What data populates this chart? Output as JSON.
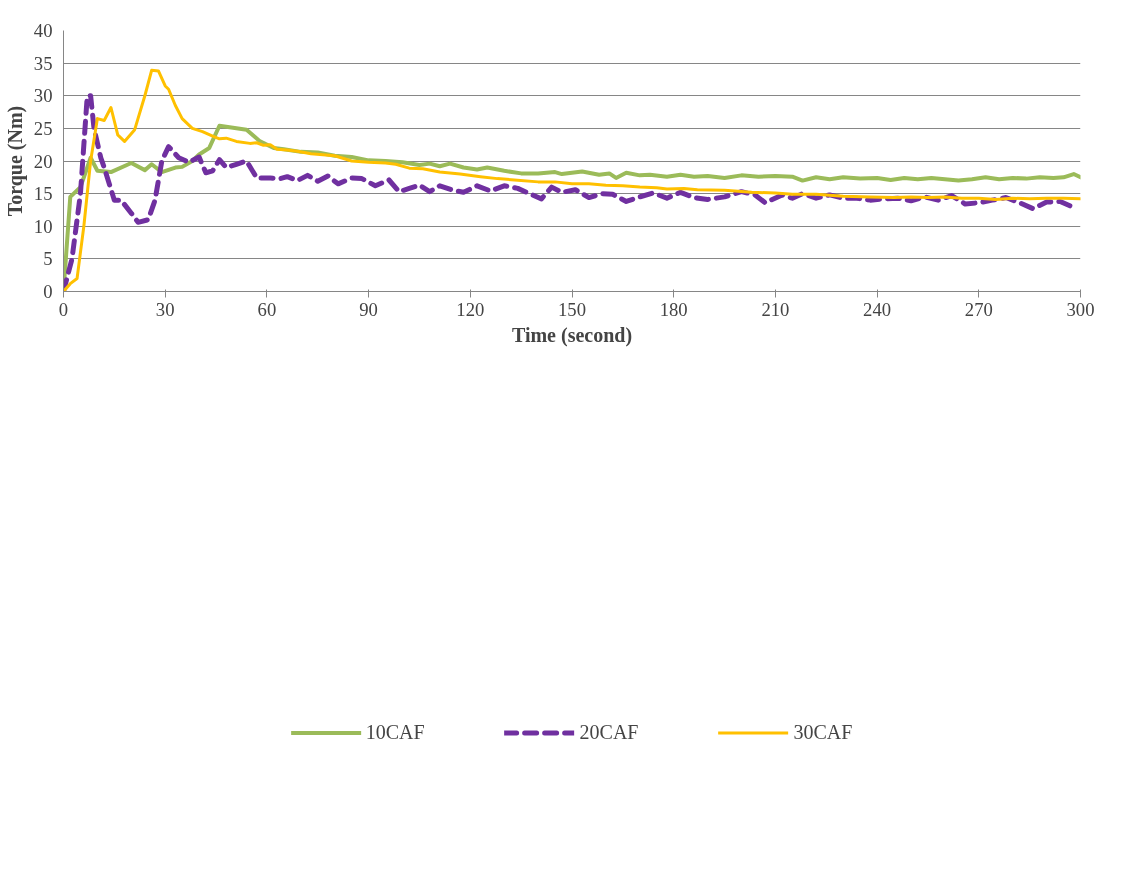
{
  "chart_data": {
    "type": "line",
    "xlabel": "Time (second)",
    "ylabel": "Torque (Nm)",
    "xlim": [
      0,
      300
    ],
    "xticks": [
      0,
      30,
      60,
      90,
      120,
      150,
      180,
      210,
      240,
      270,
      300
    ],
    "ylim": [
      0,
      40
    ],
    "yticks": [
      0,
      5,
      10,
      15,
      20,
      25,
      30,
      35,
      40
    ],
    "grid": "y",
    "legend": "bottom",
    "marker": "none",
    "series": [
      {
        "name": "10CAF",
        "color": "#9bbb59",
        "line_style": "solid",
        "x": [
          0,
          2,
          5,
          8,
          10,
          14,
          20,
          24,
          26,
          29,
          33,
          35,
          38,
          40,
          43,
          46,
          50,
          54,
          58,
          62,
          65,
          70,
          75,
          80,
          85,
          90,
          95,
          100,
          105,
          108,
          111,
          114,
          118,
          122,
          125,
          130,
          135,
          140,
          145,
          147,
          150,
          153,
          158,
          161,
          163,
          166,
          170,
          173,
          178,
          182,
          186,
          190,
          195,
          200,
          205,
          210,
          215,
          218,
          222,
          226,
          230,
          235,
          240,
          244,
          248,
          252,
          256,
          260,
          264,
          268,
          272,
          276,
          280,
          284,
          288,
          292,
          295,
          298,
          300
        ],
        "values": [
          0,
          14.5,
          16,
          20.5,
          18.5,
          18.3,
          19.7,
          18.6,
          19.5,
          18.3,
          19,
          19.1,
          20,
          21,
          22,
          25.4,
          25.1,
          24.8,
          23,
          22,
          21.8,
          21.4,
          21.3,
          20.8,
          20.6,
          20.1,
          20,
          19.8,
          19.4,
          19.6,
          19.2,
          19.6,
          19,
          18.7,
          19,
          18.5,
          18.1,
          18.1,
          18.3,
          18,
          18.2,
          18.4,
          17.9,
          18.1,
          17.4,
          18.2,
          17.8,
          17.9,
          17.6,
          17.9,
          17.6,
          17.7,
          17.4,
          17.8,
          17.6,
          17.7,
          17.6,
          17,
          17.5,
          17.2,
          17.5,
          17.3,
          17.4,
          17.1,
          17.4,
          17.2,
          17.4,
          17.2,
          17,
          17.2,
          17.5,
          17.2,
          17.4,
          17.3,
          17.5,
          17.4,
          17.5,
          18,
          17.5
        ]
      },
      {
        "name": "20CAF",
        "color": "#7030a0",
        "line_style": "dashed",
        "x": [
          0,
          2.5,
          5,
          7,
          8,
          9,
          11,
          12,
          15,
          17,
          20,
          22,
          25,
          27,
          29,
          31,
          34,
          37,
          40,
          42,
          44,
          46,
          48,
          51,
          54,
          57,
          61,
          64,
          66,
          69,
          72,
          75,
          78,
          81,
          85,
          88,
          92,
          96,
          99,
          102,
          105,
          108,
          111,
          115,
          118,
          122,
          126,
          130,
          134,
          137,
          141,
          144,
          147,
          151,
          155,
          159,
          162,
          166,
          170,
          174,
          178,
          182,
          186,
          190,
          195,
          200,
          204,
          207,
          212,
          215,
          218,
          222,
          226,
          230,
          234,
          238,
          242,
          246,
          250,
          254,
          258,
          262,
          266,
          270,
          274,
          278,
          282,
          286,
          290,
          294,
          297,
          299
        ],
        "values": [
          0,
          5,
          15,
          29.9,
          30,
          25,
          20.5,
          19,
          14,
          14,
          12,
          10.6,
          11,
          14,
          20,
          22.2,
          20.5,
          19.8,
          20.6,
          18.2,
          18.5,
          20.2,
          19,
          19.5,
          20,
          17.4,
          17.4,
          17.3,
          17.6,
          17,
          17.8,
          16.9,
          17.7,
          16.5,
          17.4,
          17.3,
          16.2,
          17.1,
          15.3,
          15.8,
          16.3,
          15.3,
          16.2,
          15.5,
          15.2,
          16.2,
          15.4,
          16.2,
          15.8,
          15.1,
          14.2,
          16,
          15.2,
          15.6,
          14.4,
          15,
          14.9,
          13.8,
          14.5,
          15.1,
          14.3,
          15.2,
          14.4,
          14.1,
          14.5,
          15.3,
          14.8,
          13.6,
          14.8,
          14.3,
          15,
          14.3,
          14.8,
          14.3,
          14.3,
          14,
          14.2,
          14.3,
          13.9,
          14.5,
          14,
          14.7,
          13.4,
          13.6,
          14,
          14.4,
          13.6,
          12.7,
          13.7,
          13.8,
          13.1,
          13.5
        ]
      },
      {
        "name": "30CAF",
        "color": "#ffc000",
        "line_style": "solid",
        "x": [
          0,
          2,
          4,
          6,
          8,
          10,
          12,
          14,
          16,
          18,
          21,
          24,
          26,
          28,
          30,
          31,
          33,
          35,
          38,
          41,
          44,
          46,
          48,
          51,
          55,
          57,
          59,
          61,
          63,
          66,
          69,
          73,
          80,
          85,
          90,
          95,
          98,
          102,
          106,
          111,
          117,
          123,
          128,
          133,
          140,
          145,
          150,
          155,
          160,
          165,
          170,
          175,
          178,
          183,
          187,
          195,
          203,
          210,
          215,
          222,
          230,
          238,
          245,
          250,
          255,
          260,
          265,
          270,
          275,
          280,
          285,
          290,
          295,
          300
        ],
        "values": [
          0,
          1.2,
          2,
          10,
          20,
          26.5,
          26.2,
          28.2,
          24,
          23,
          24.8,
          30,
          33.9,
          33.8,
          31.5,
          31,
          28.5,
          26.5,
          25,
          24.5,
          23.8,
          23.4,
          23.5,
          23,
          22.7,
          22.8,
          22.4,
          22.5,
          21.8,
          21.7,
          21.5,
          21.1,
          20.8,
          20,
          19.8,
          19.7,
          19.5,
          18.9,
          18.8,
          18.3,
          18,
          17.6,
          17.3,
          17.1,
          16.8,
          16.8,
          16.5,
          16.5,
          16.3,
          16.2,
          16,
          15.9,
          15.7,
          15.8,
          15.6,
          15.5,
          15.2,
          15.1,
          14.9,
          14.9,
          14.6,
          14.5,
          14.4,
          14.5,
          14.4,
          14.5,
          14.3,
          14.3,
          14.1,
          14.3,
          14.2,
          14.3,
          14.3,
          14.2
        ]
      }
    ]
  }
}
